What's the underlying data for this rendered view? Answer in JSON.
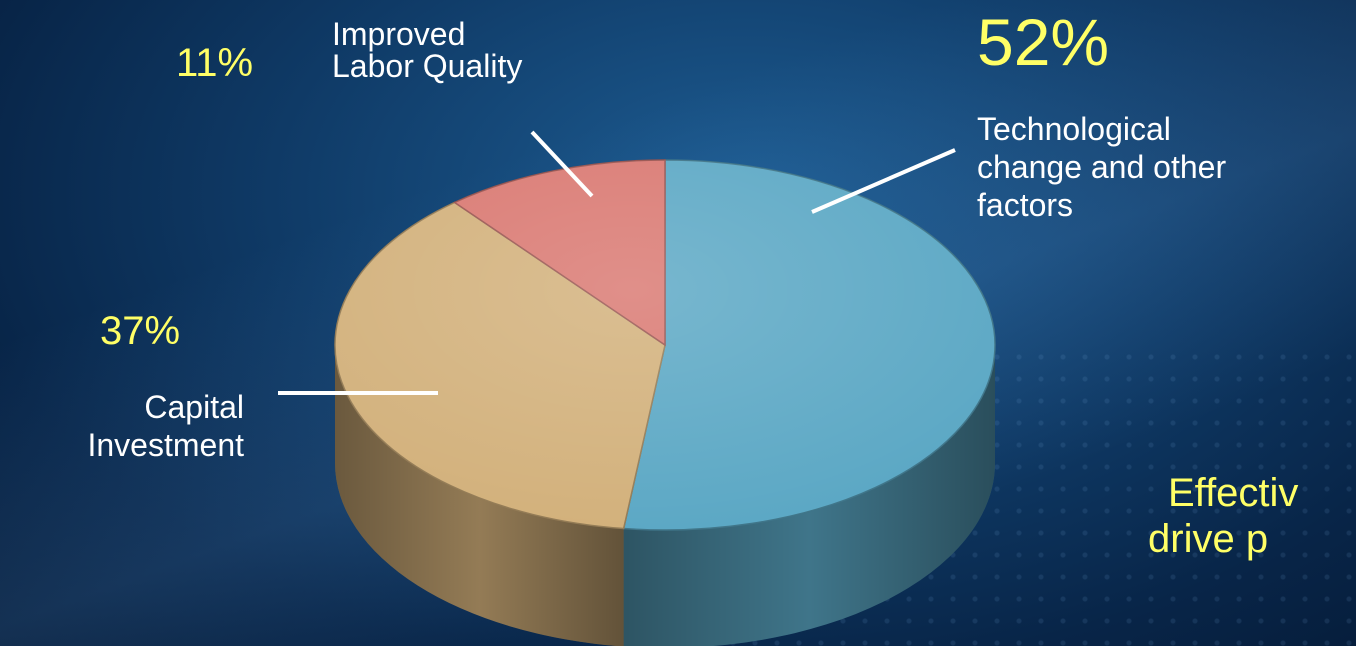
{
  "chart_data": {
    "type": "pie",
    "slices": [
      {
        "label": "Technological change and other factors",
        "value": 52,
        "display": "52%",
        "color": "#5aa7c4"
      },
      {
        "label": "Capital Investment",
        "value": 37,
        "display": "37%",
        "color": "#d2b07a"
      },
      {
        "label": "Improved Labor Quality",
        "value": 11,
        "display": "11%",
        "color": "#d97770"
      }
    ]
  },
  "labels": {
    "tech_pct": "52%",
    "tech_line1": "Technological",
    "tech_line2": "change and other",
    "tech_line3": "factors",
    "capital_pct": "37%",
    "capital_line1": "Capital",
    "capital_line2": "Investment",
    "labor_pct": "11%",
    "labor_line1": "Improved",
    "labor_line2": "Labor Quality"
  },
  "footer_text": {
    "line1": "Effectiv",
    "line2": "drive p"
  }
}
